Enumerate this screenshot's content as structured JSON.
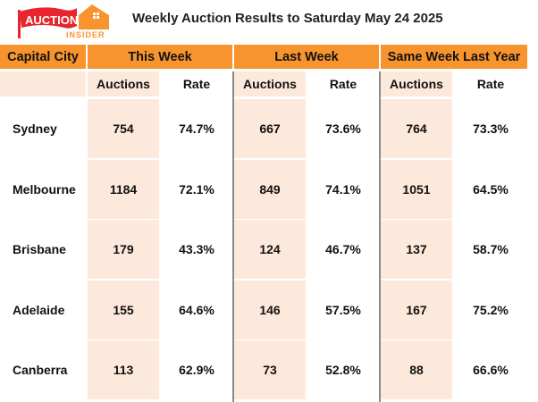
{
  "logo": {
    "main": "AUCTION",
    "sub": "INSIDER",
    "flag_color": "#e8242c",
    "house_color": "#f7942e"
  },
  "title": "Weekly Auction Results to Saturday May 24 2025",
  "header": {
    "city": "Capital City",
    "groups": [
      "This Week",
      "Last Week",
      "Same Week Last Year"
    ],
    "sub": [
      "Auctions",
      "Rate"
    ]
  },
  "colors": {
    "header": "#f7942e",
    "shade": "#fde9dc"
  },
  "rows": [
    {
      "city": "Sydney",
      "vals": [
        "754",
        "74.7%",
        "667",
        "73.6%",
        "764",
        "73.3%"
      ]
    },
    {
      "city": "Melbourne",
      "vals": [
        "1184",
        "72.1%",
        "849",
        "74.1%",
        "1051",
        "64.5%"
      ]
    },
    {
      "city": "Brisbane",
      "vals": [
        "179",
        "43.3%",
        "124",
        "46.7%",
        "137",
        "58.7%"
      ]
    },
    {
      "city": "Adelaide",
      "vals": [
        "155",
        "64.6%",
        "146",
        "57.5%",
        "167",
        "75.2%"
      ]
    },
    {
      "city": "Canberra",
      "vals": [
        "113",
        "62.9%",
        "73",
        "52.8%",
        "88",
        "66.6%"
      ]
    }
  ]
}
